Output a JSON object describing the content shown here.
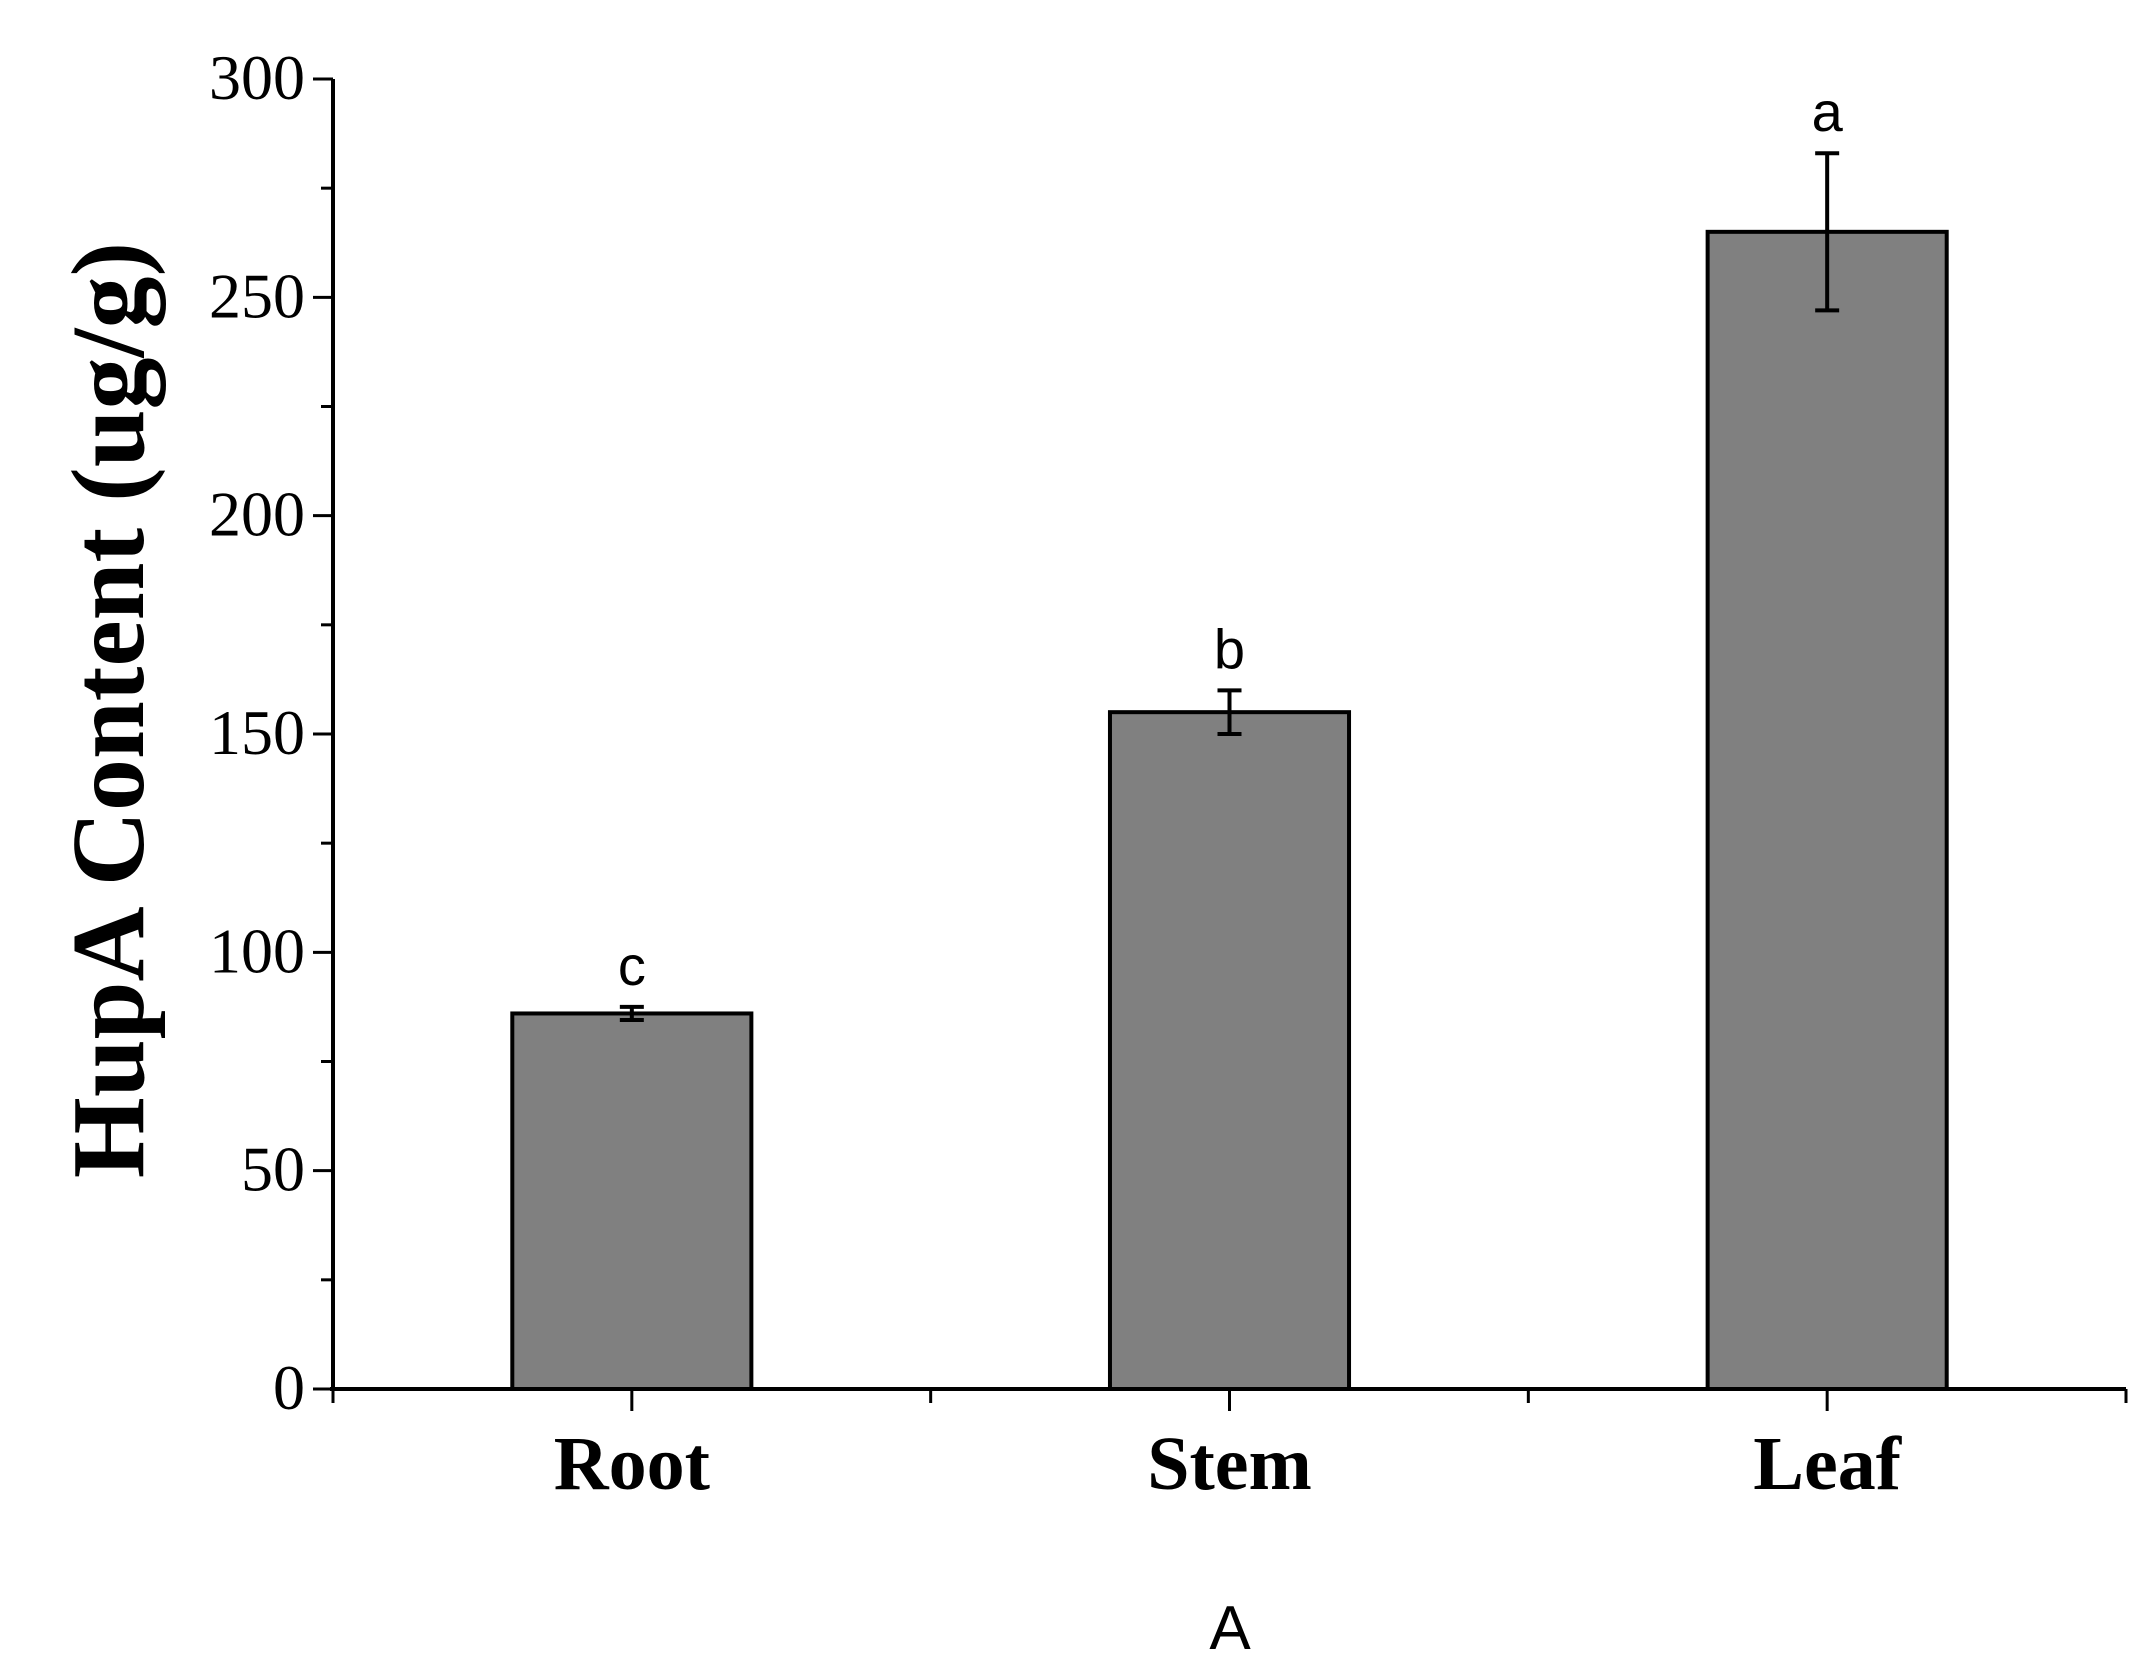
{
  "chart_data": {
    "type": "bar",
    "categories": [
      "Root",
      "Stem",
      "Leaf"
    ],
    "values": [
      86,
      155,
      265
    ],
    "errors": [
      1.5,
      5,
      18
    ],
    "significance_letters": [
      "c",
      "b",
      "a"
    ],
    "ylabel": "HupA Content (ug/g)",
    "xlabel": "",
    "panel_label": "A",
    "ylim": [
      0,
      300
    ],
    "yticks": [
      0,
      50,
      100,
      150,
      200,
      250,
      300
    ],
    "ytick_labels": [
      "0",
      "50",
      "100",
      "150",
      "200",
      "250",
      "300"
    ],
    "bar_color": "#808080",
    "grid": false,
    "legend": "none"
  }
}
